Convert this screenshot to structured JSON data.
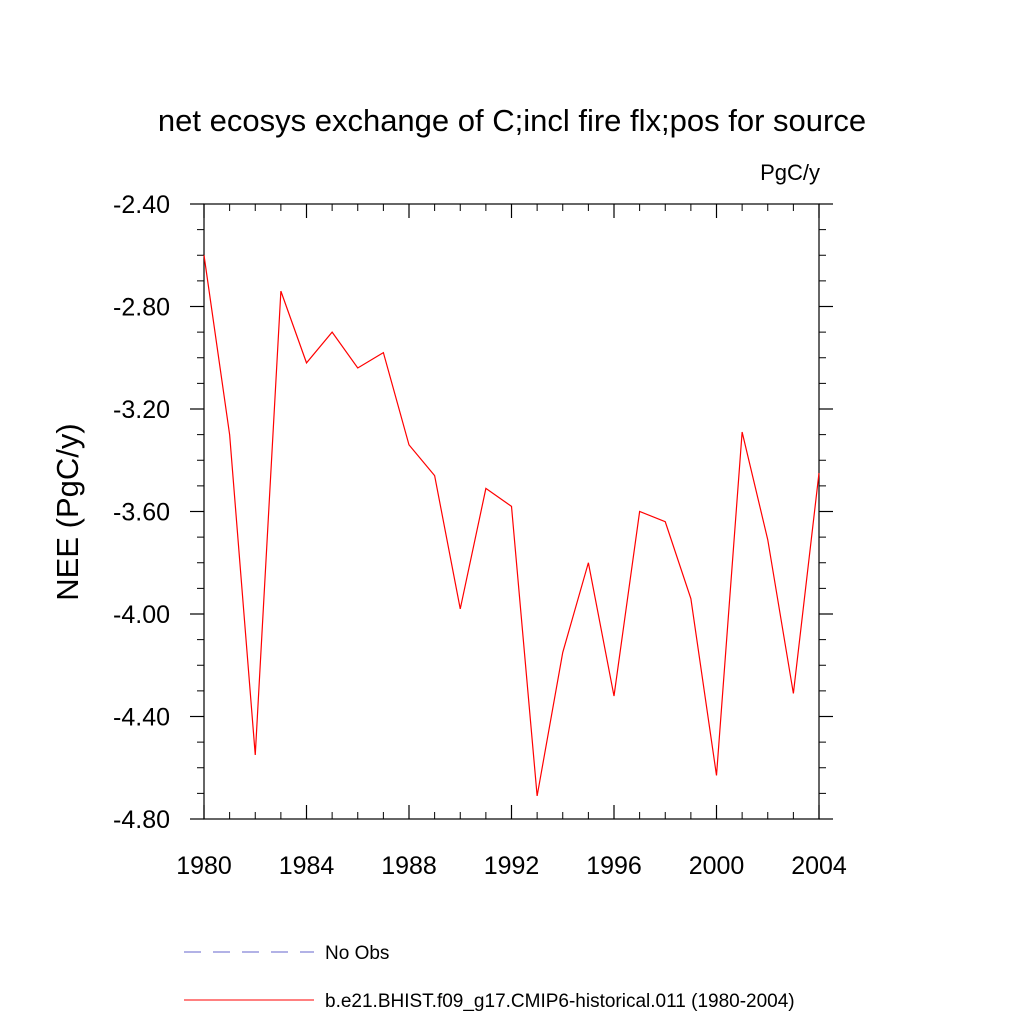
{
  "chart_data": {
    "type": "line",
    "title": "net ecosys exchange of C;incl fire flx;pos for source",
    "units": "PgC/y",
    "ylabel": "NEE  (PgC/y)",
    "xlabel": "",
    "xlim": [
      1980,
      2004
    ],
    "ylim": [
      -4.8,
      -2.4
    ],
    "x_ticks": [
      "1980",
      "1984",
      "1988",
      "1992",
      "1996",
      "2000",
      "2004"
    ],
    "y_ticks": [
      "-2.40",
      "-2.80",
      "-3.20",
      "-3.60",
      "-4.00",
      "-4.40",
      "-4.80"
    ],
    "grid": false,
    "legend_placement": "bottom",
    "series": [
      {
        "name": "b.e21.BHIST.f09_g17.CMIP6-historical.011 (1980-2004)",
        "color": "#ff0000",
        "style": "solid",
        "x": [
          1980,
          1981,
          1982,
          1983,
          1984,
          1985,
          1986,
          1987,
          1988,
          1989,
          1990,
          1991,
          1992,
          1993,
          1994,
          1995,
          1996,
          1997,
          1998,
          1999,
          2000,
          2001,
          2002,
          2003,
          2004
        ],
        "values": [
          -2.6,
          -3.3,
          -4.55,
          -2.74,
          -3.02,
          -2.9,
          -3.04,
          -2.98,
          -3.34,
          -3.46,
          -3.98,
          -3.51,
          -3.58,
          -4.71,
          -4.15,
          -3.8,
          -4.32,
          -3.6,
          -3.64,
          -3.94,
          -4.63,
          -3.29,
          -3.71,
          -4.31,
          -3.45
        ]
      }
    ],
    "legend": [
      {
        "label": "No Obs",
        "color": "#6666cc",
        "style": "dashed"
      },
      {
        "label": "b.e21.BHIST.f09_g17.CMIP6-historical.011 (1980-2004)",
        "color": "#ff0000",
        "style": "solid"
      }
    ]
  }
}
